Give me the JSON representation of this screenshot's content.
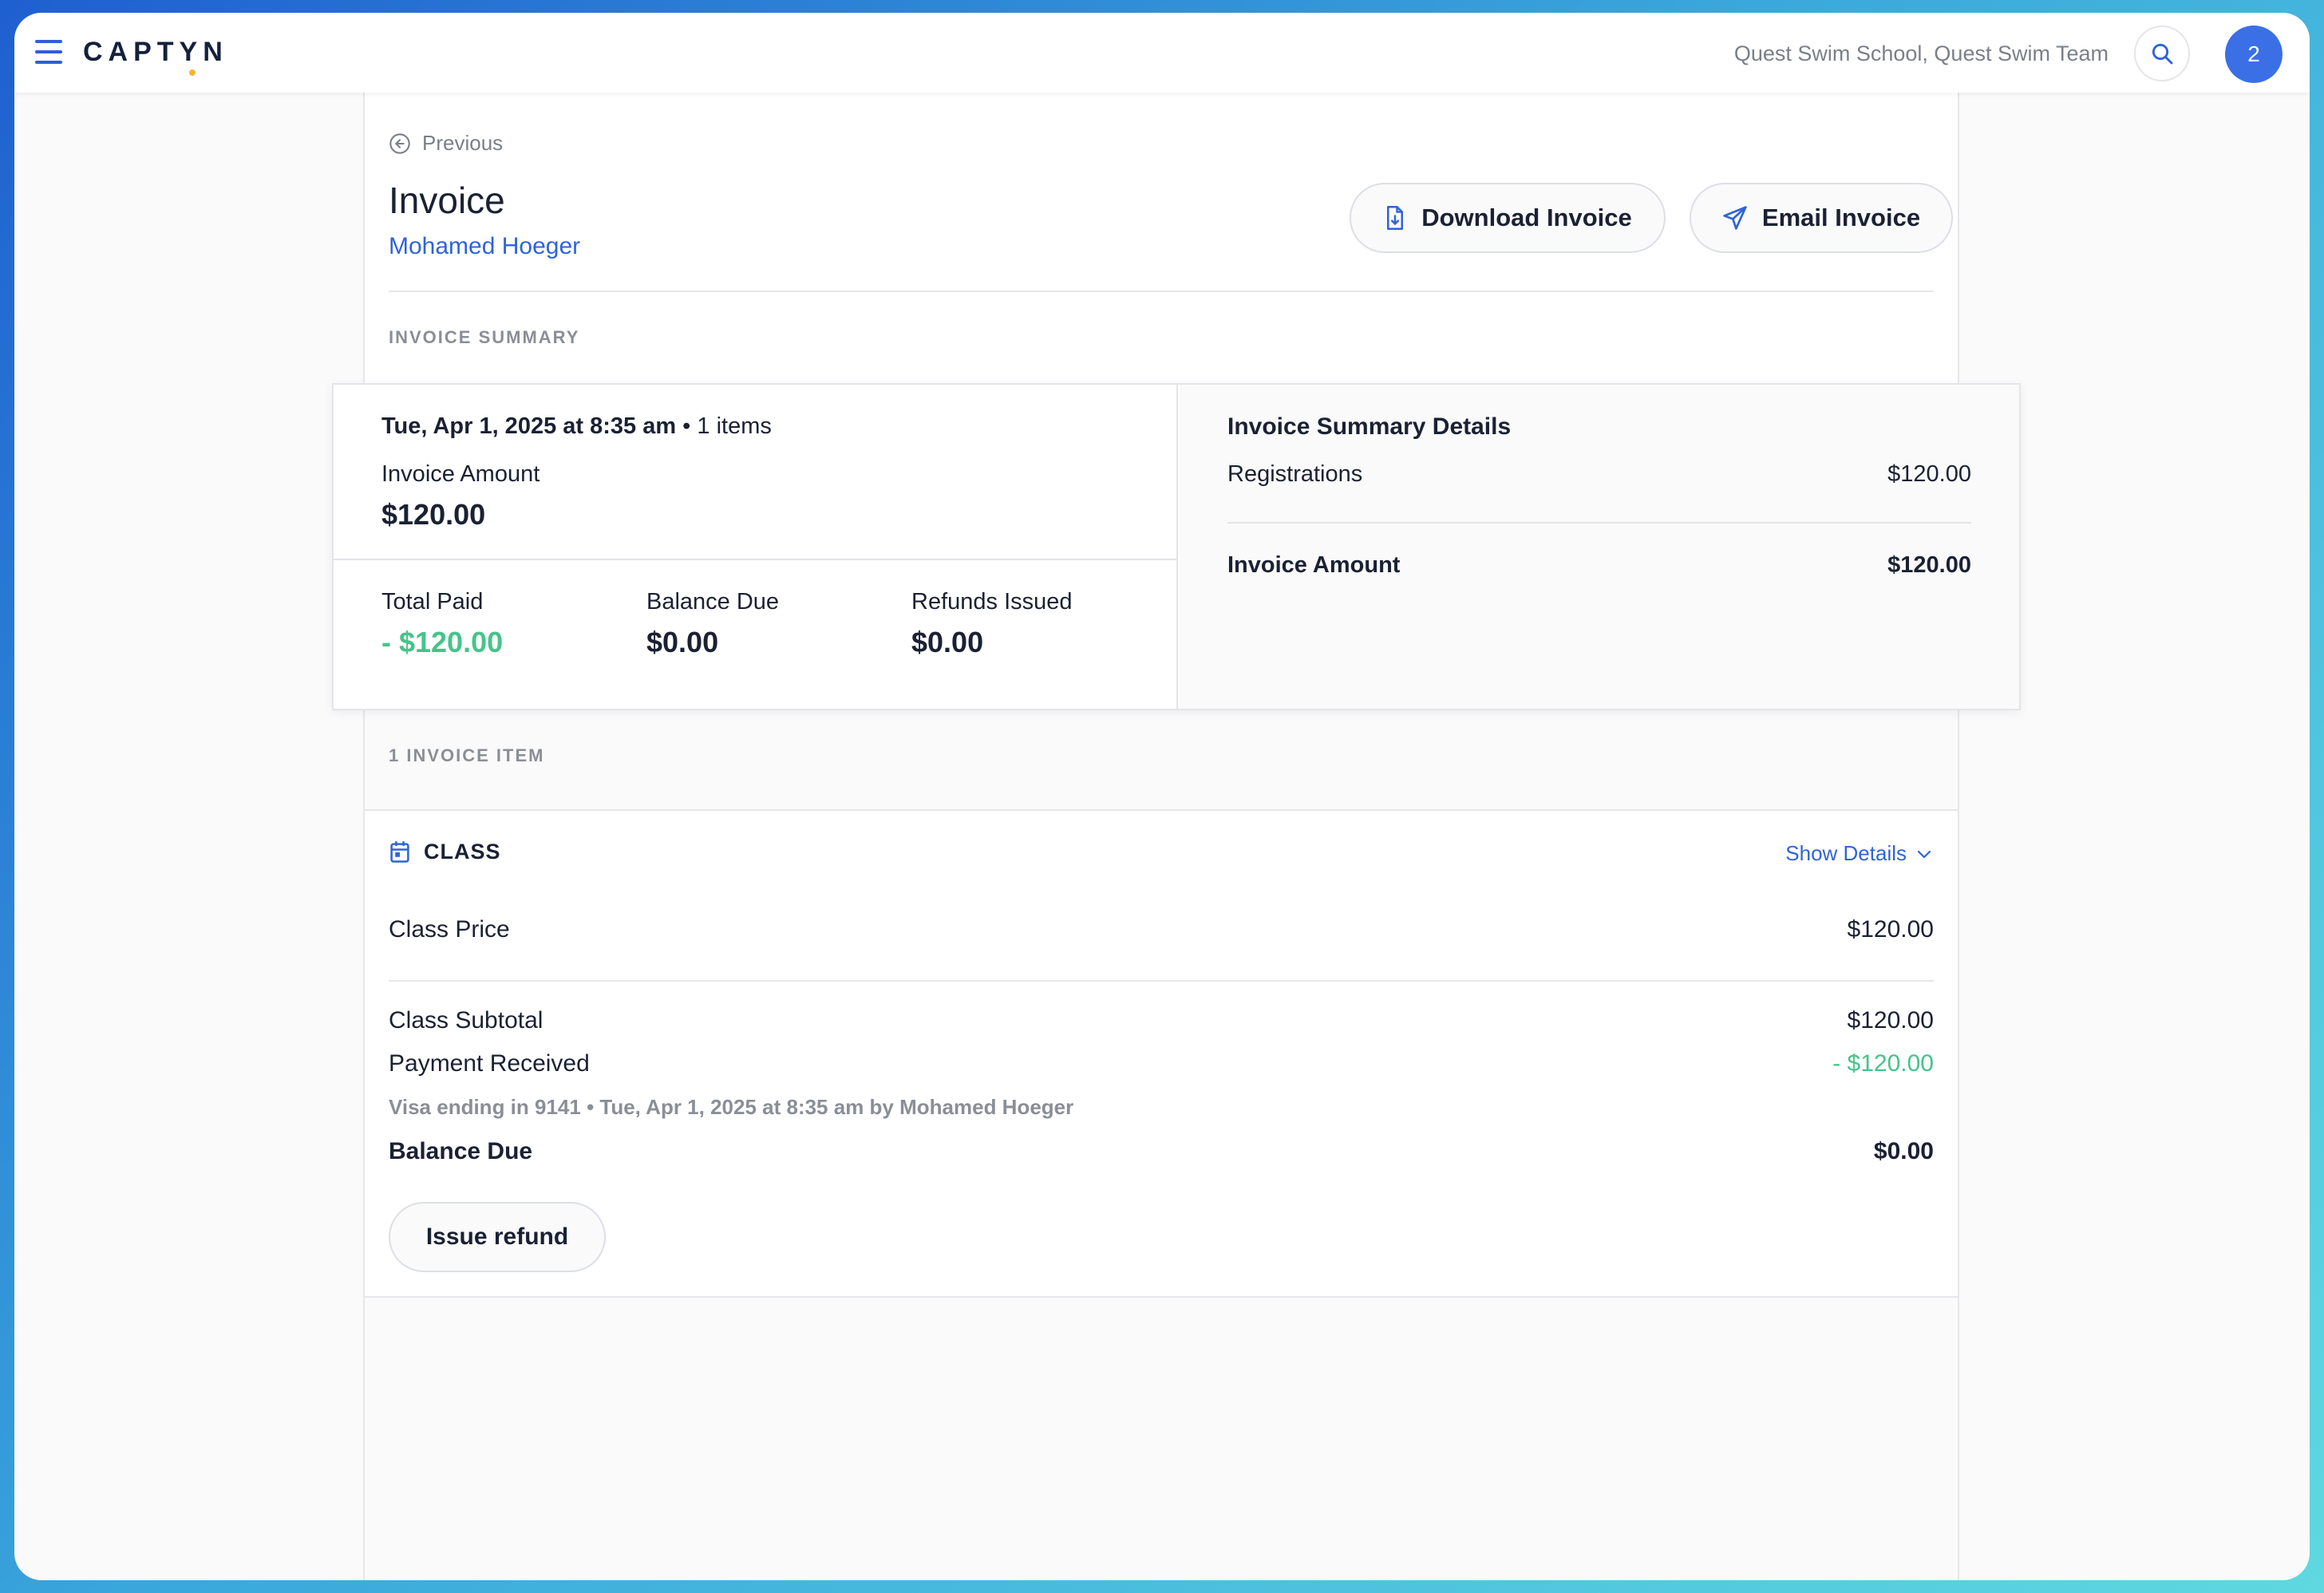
{
  "header": {
    "logo": "CAPTYN",
    "org_name": "Quest Swim School, Quest Swim Team",
    "avatar_count": "2"
  },
  "nav": {
    "previous_label": "Previous"
  },
  "invoice": {
    "title": "Invoice",
    "customer": "Mohamed Hoeger",
    "download_label": "Download Invoice",
    "email_label": "Email Invoice"
  },
  "summary": {
    "section_label": "INVOICE SUMMARY",
    "date": "Tue, Apr 1, 2025 at 8:35 am",
    "items_count": " • 1 items",
    "invoice_amount_label": "Invoice Amount",
    "invoice_amount": "$120.00",
    "total_paid_label": "Total Paid",
    "total_paid": "- $120.00",
    "balance_due_label": "Balance Due",
    "balance_due": "$0.00",
    "refunds_label": "Refunds Issued",
    "refunds": "$0.00"
  },
  "details": {
    "title": "Invoice Summary Details",
    "registrations_label": "Registrations",
    "registrations_value": "$120.00",
    "invoice_amount_label": "Invoice Amount",
    "invoice_amount_value": "$120.00"
  },
  "items": {
    "section_label": "1 INVOICE ITEM",
    "type_label": "CLASS",
    "show_details": "Show Details",
    "class_price_label": "Class Price",
    "class_price": "$120.00",
    "subtotal_label": "Class Subtotal",
    "subtotal": "$120.00",
    "payment_label": "Payment Received",
    "payment": "- $120.00",
    "payment_meta": "Visa ending in 9141 • Tue, Apr 1, 2025 at 8:35 am by Mohamed Hoeger",
    "balance_label": "Balance Due",
    "balance": "$0.00",
    "refund_button": "Issue refund"
  },
  "colors": {
    "accent": "#2f64d8",
    "positive": "#45c48a",
    "avatar": "#3b6fe6"
  },
  "icons": [
    "menu-icon",
    "search-icon",
    "back-arrow-icon",
    "document-download-icon",
    "send-icon",
    "calendar-icon",
    "chevron-down-icon"
  ]
}
